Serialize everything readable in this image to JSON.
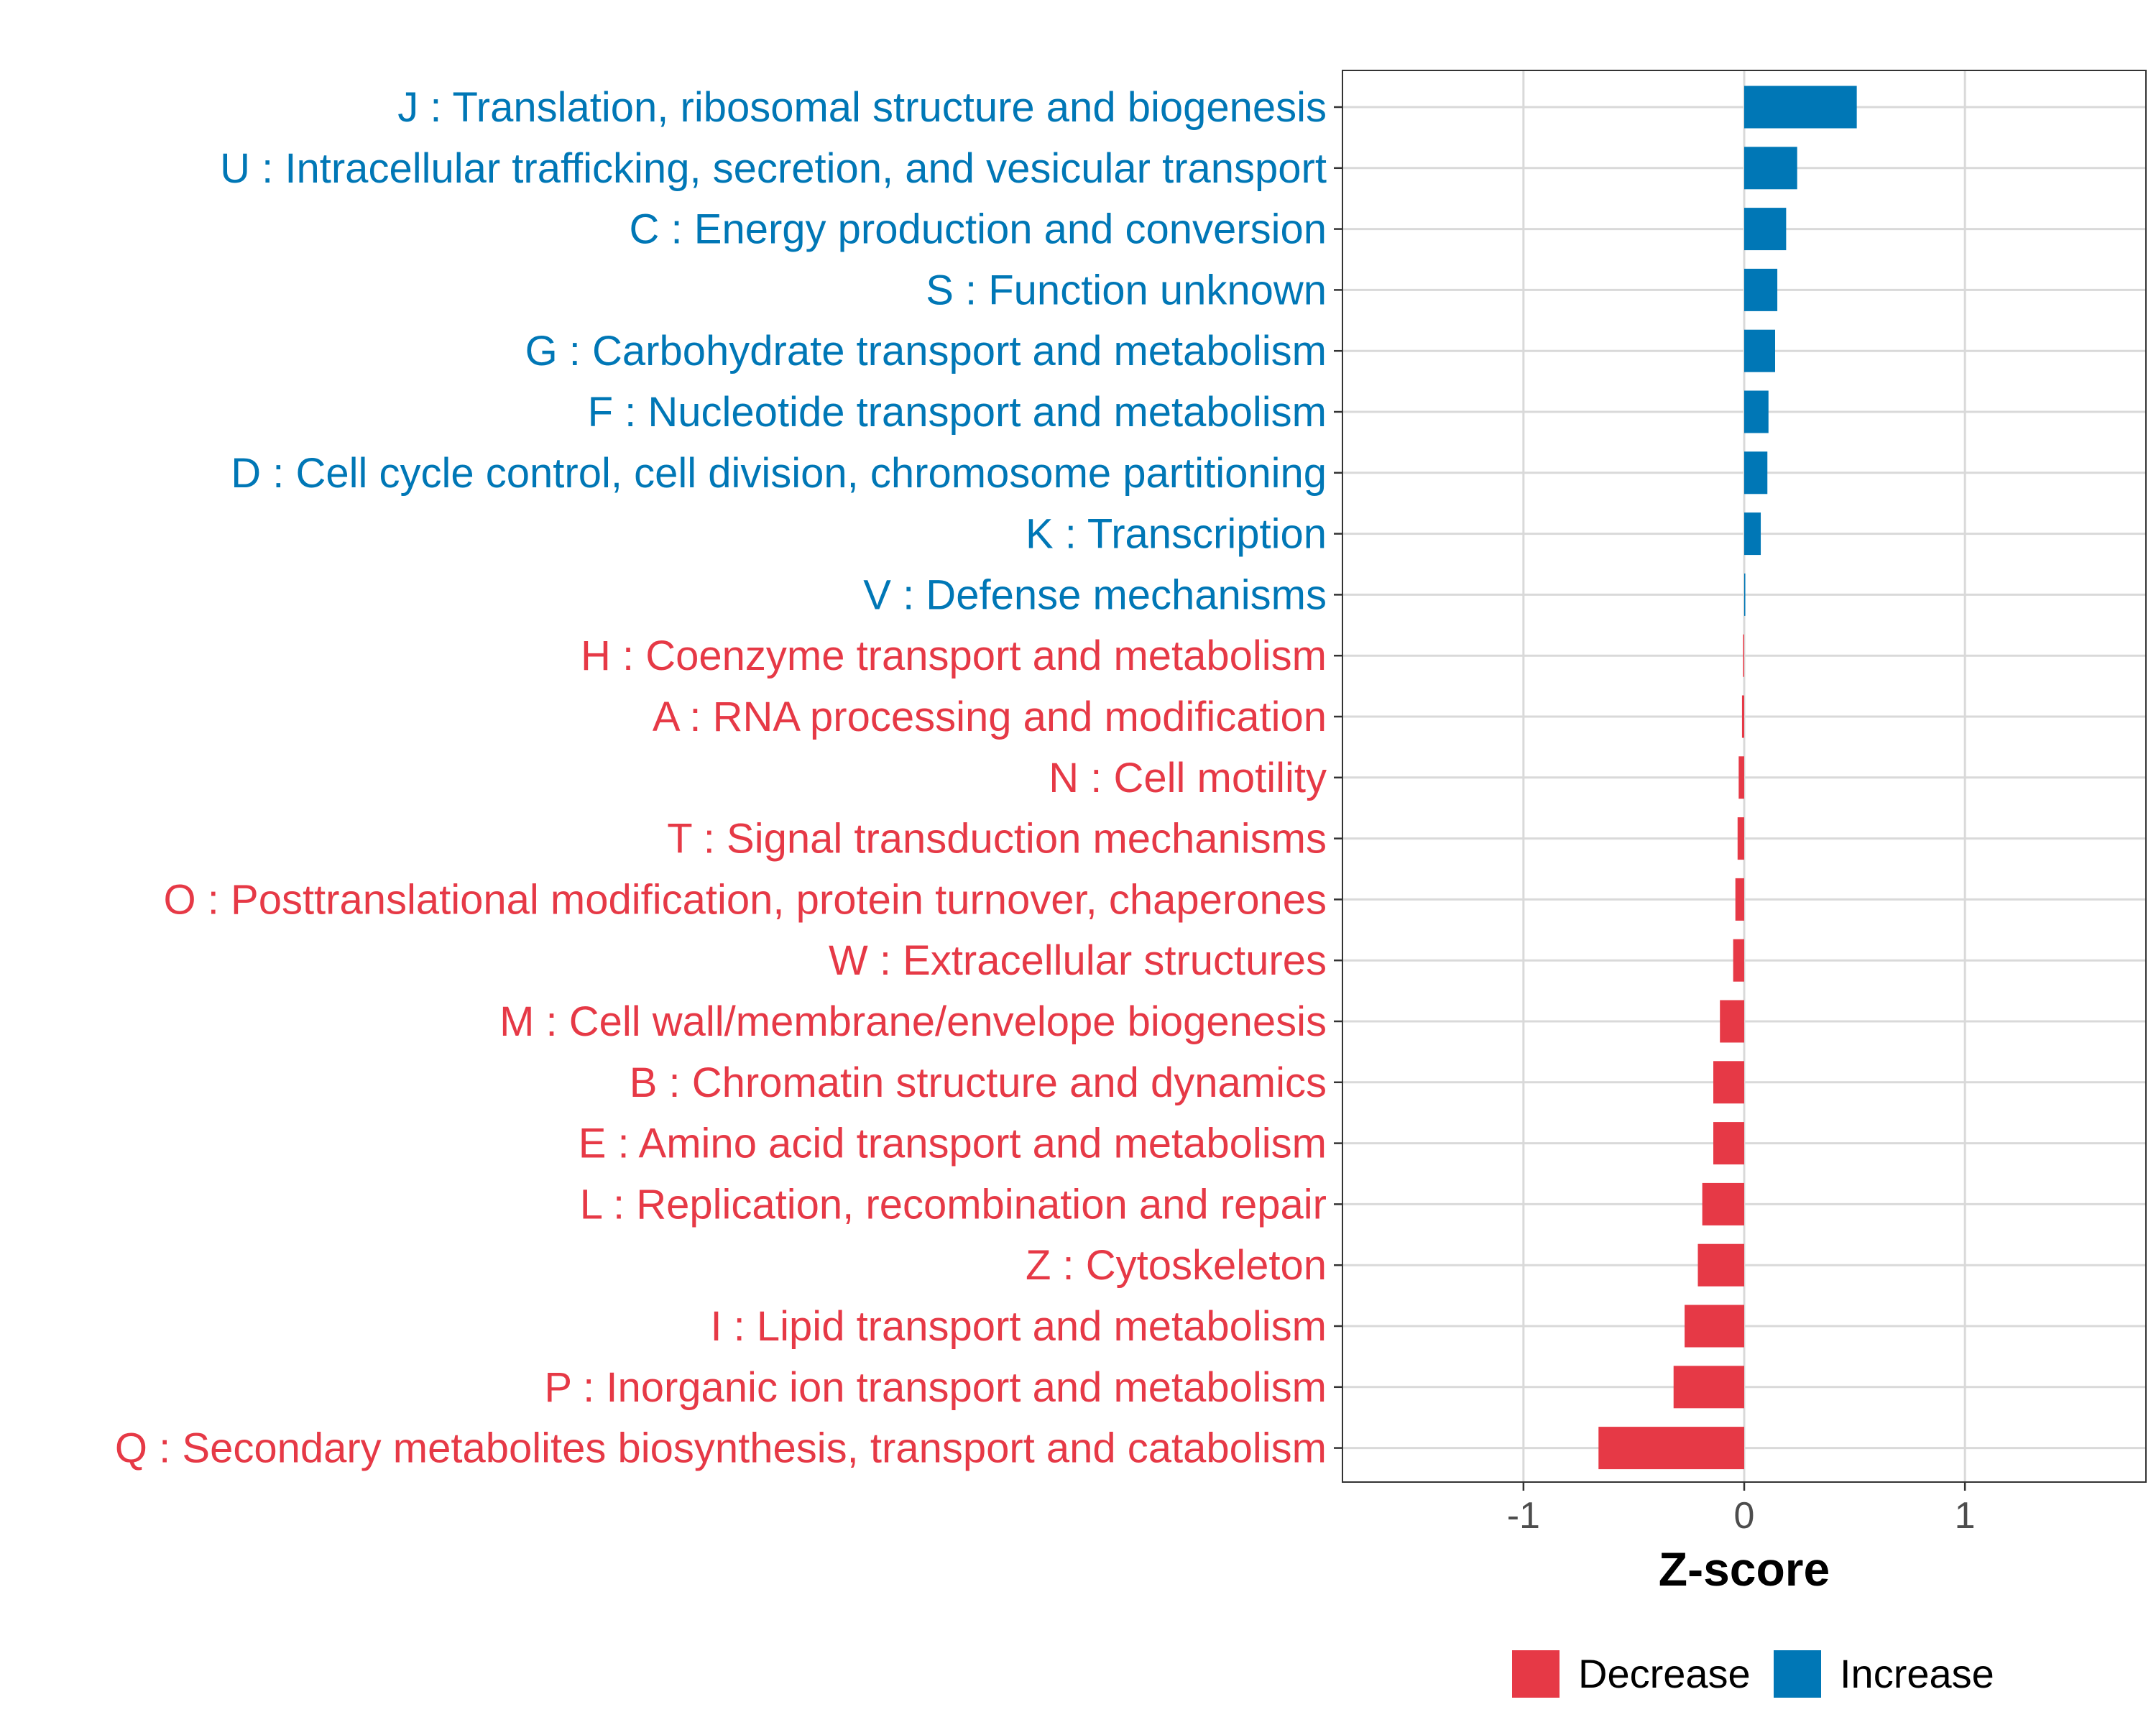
{
  "chart_data": {
    "type": "bar",
    "orientation": "horizontal",
    "categories": [
      "J : Translation, ribosomal structure and biogenesis",
      "U : Intracellular trafficking, secretion, and vesicular transport",
      "C : Energy production and conversion",
      "S : Function unknown",
      "G : Carbohydrate transport and metabolism",
      "F : Nucleotide transport and metabolism",
      "D : Cell cycle control, cell division, chromosome partitioning",
      "K : Transcription",
      "V : Defense mechanisms",
      "H : Coenzyme transport and metabolism",
      "A : RNA processing and modification",
      "N : Cell motility",
      "T : Signal transduction mechanisms",
      "O : Posttranslational modification, protein turnover, chaperones",
      "W : Extracellular structures",
      "M : Cell wall/membrane/envelope biogenesis",
      "B : Chromatin structure and dynamics",
      "E : Amino acid transport and metabolism",
      "L : Replication, recombination and repair",
      "Z : Cytoskeleton",
      "I : Lipid transport and metabolism",
      "P : Inorganic ion transport and metabolism",
      "Q : Secondary metabolites biosynthesis, transport and catabolism"
    ],
    "values": [
      0.51,
      0.24,
      0.19,
      0.15,
      0.14,
      0.11,
      0.105,
      0.075,
      0.005,
      -0.005,
      -0.01,
      -0.025,
      -0.03,
      -0.04,
      -0.05,
      -0.11,
      -0.14,
      -0.14,
      -0.19,
      -0.21,
      -0.27,
      -0.32,
      -0.66
    ],
    "groups": [
      "Increase",
      "Increase",
      "Increase",
      "Increase",
      "Increase",
      "Increase",
      "Increase",
      "Increase",
      "Increase",
      "Decrease",
      "Decrease",
      "Decrease",
      "Decrease",
      "Decrease",
      "Decrease",
      "Decrease",
      "Decrease",
      "Decrease",
      "Decrease",
      "Decrease",
      "Decrease",
      "Decrease",
      "Decrease"
    ],
    "title": "",
    "xlabel": "Z-score",
    "ylabel": "",
    "xlim": [
      -1.82,
      1.82
    ],
    "xticks": [
      -1,
      0,
      1
    ],
    "xtick_labels": [
      "-1",
      "0",
      "1"
    ],
    "grid": true,
    "legend": {
      "position": "bottom",
      "entries": [
        {
          "label": "Decrease",
          "color": "#E63946"
        },
        {
          "label": "Increase",
          "color": "#0077B6"
        }
      ]
    }
  },
  "colors": {
    "decrease": "#E63946",
    "increase": "#0077B6",
    "grid": "#d9d9d9",
    "panel_border": "#333333"
  }
}
